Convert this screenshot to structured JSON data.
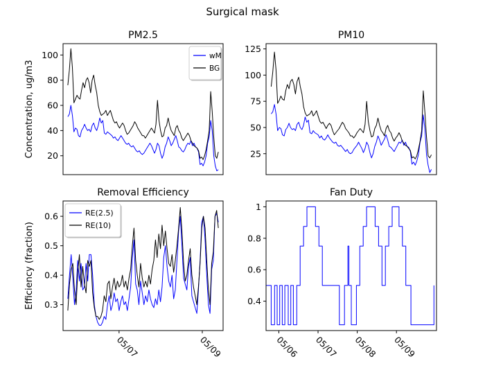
{
  "figure": {
    "suptitle": "Surgical mask"
  },
  "colors": {
    "wm": "#0000ff",
    "bg": "#000000",
    "re25": "#0000ff",
    "re10": "#000000",
    "fan": "#0000ff"
  },
  "chart_data": [
    {
      "type": "line",
      "title": "PM2.5",
      "xlabel": "",
      "ylabel": "Concentration, ug/m3",
      "xlim": [
        0,
        100
      ],
      "ylim": [
        5,
        109
      ],
      "yticks": [
        20,
        40,
        60,
        80,
        100
      ],
      "x_ticks_labeled": false,
      "legend": {
        "placement": "top-right",
        "entries": [
          "wM",
          "BG"
        ]
      },
      "series": [
        {
          "name": "wM",
          "color_key": "wm",
          "values": [
            51,
            53,
            60,
            52,
            39,
            42,
            41,
            36,
            35,
            40,
            42,
            45,
            42,
            40,
            41,
            39,
            44,
            46,
            42,
            40,
            44,
            50,
            46,
            48,
            38,
            37,
            39,
            38,
            37,
            36,
            34,
            35,
            33,
            32,
            34,
            36,
            34,
            32,
            30,
            29,
            30,
            28,
            27,
            28,
            26,
            24,
            23,
            24,
            22,
            21,
            22,
            24,
            26,
            28,
            30,
            28,
            25,
            22,
            25,
            30,
            28,
            22,
            18,
            21,
            27,
            30,
            35,
            32,
            28,
            30,
            33,
            36,
            32,
            27,
            26,
            24,
            23,
            25,
            28,
            30,
            29,
            32,
            28,
            30,
            27,
            26,
            23,
            13,
            14,
            12,
            15,
            20,
            30,
            35,
            48,
            40,
            20,
            12,
            8,
            9
          ]
        },
        {
          "name": "BG",
          "color_key": "bg",
          "values": [
            76,
            88,
            105,
            90,
            62,
            65,
            68,
            66,
            65,
            72,
            78,
            74,
            80,
            82,
            78,
            70,
            80,
            84,
            76,
            70,
            60,
            55,
            52,
            53,
            54,
            56,
            52,
            54,
            56,
            52,
            48,
            46,
            47,
            44,
            42,
            44,
            46,
            44,
            40,
            37,
            38,
            40,
            42,
            44,
            47,
            45,
            42,
            40,
            38,
            36,
            36,
            34,
            36,
            38,
            40,
            42,
            40,
            38,
            45,
            64,
            48,
            40,
            35,
            36,
            42,
            44,
            50,
            44,
            40,
            38,
            36,
            42,
            44,
            40,
            38,
            34,
            32,
            34,
            36,
            38,
            36,
            32,
            30,
            28,
            27,
            26,
            24,
            18,
            19,
            17,
            20,
            25,
            32,
            40,
            71,
            55,
            35,
            20,
            18,
            23
          ]
        }
      ]
    },
    {
      "type": "line",
      "title": "PM10",
      "xlabel": "",
      "ylabel": "",
      "xlim": [
        0,
        100
      ],
      "ylim": [
        5,
        130
      ],
      "yticks": [
        25,
        50,
        75,
        100,
        125
      ],
      "x_ticks_labeled": false,
      "legend": null,
      "series": [
        {
          "name": "",
          "color_key": "wm",
          "values": [
            63,
            65,
            72,
            63,
            47,
            50,
            49,
            43,
            42,
            48,
            50,
            54,
            50,
            48,
            49,
            47,
            53,
            55,
            50,
            48,
            52,
            60,
            55,
            57,
            45,
            44,
            47,
            45,
            44,
            43,
            40,
            42,
            39,
            38,
            40,
            43,
            40,
            38,
            36,
            35,
            36,
            33,
            32,
            33,
            31,
            29,
            27,
            29,
            26,
            25,
            26,
            29,
            31,
            33,
            36,
            33,
            30,
            26,
            30,
            36,
            33,
            26,
            21,
            25,
            32,
            36,
            42,
            38,
            33,
            36,
            39,
            43,
            38,
            32,
            31,
            29,
            27,
            30,
            33,
            36,
            35,
            38,
            33,
            36,
            32,
            31,
            27,
            15,
            17,
            14,
            18,
            24,
            36,
            42,
            62,
            48,
            24,
            14,
            7,
            10
          ]
        },
        {
          "name": "",
          "color_key": "bg",
          "values": [
            89,
            103,
            122,
            105,
            73,
            76,
            80,
            77,
            76,
            85,
            91,
            87,
            94,
            96,
            91,
            82,
            94,
            98,
            89,
            82,
            70,
            64,
            61,
            62,
            63,
            66,
            61,
            63,
            66,
            61,
            56,
            54,
            55,
            52,
            49,
            52,
            54,
            52,
            47,
            43,
            45,
            47,
            49,
            52,
            55,
            53,
            49,
            47,
            45,
            42,
            42,
            40,
            42,
            45,
            47,
            49,
            47,
            45,
            53,
            75,
            56,
            47,
            41,
            42,
            49,
            52,
            59,
            52,
            47,
            45,
            42,
            49,
            52,
            47,
            45,
            40,
            37,
            40,
            42,
            45,
            42,
            37,
            35,
            33,
            32,
            30,
            28,
            21,
            22,
            20,
            23,
            29,
            37,
            47,
            85,
            64,
            41,
            23,
            21,
            24
          ]
        }
      ]
    },
    {
      "type": "line",
      "title": "Removal Efficiency",
      "xlabel": "",
      "ylabel": "Efficiency (fraction)",
      "xlim": [
        0,
        100
      ],
      "ylim": [
        0.212,
        0.652
      ],
      "yticks": [
        0.3,
        0.4,
        0.5,
        0.6
      ],
      "xticks": [
        {
          "x": 35,
          "label": "05/07"
        },
        {
          "x": 87,
          "label": "05/09"
        }
      ],
      "legend": {
        "placement": "top-left",
        "entries": [
          "RE(2.5)",
          "RE(10)"
        ]
      },
      "series": [
        {
          "name": "RE(2.5)",
          "color_key": "re25",
          "values": [
            0.32,
            0.4,
            0.47,
            0.39,
            0.3,
            0.35,
            0.45,
            0.38,
            0.44,
            0.35,
            0.36,
            0.44,
            0.38,
            0.47,
            0.47,
            0.4,
            0.3,
            0.26,
            0.24,
            0.23,
            0.23,
            0.24,
            0.26,
            0.25,
            0.3,
            0.33,
            0.28,
            0.3,
            0.34,
            0.31,
            0.32,
            0.28,
            0.31,
            0.33,
            0.3,
            0.31,
            0.28,
            0.32,
            0.36,
            0.46,
            0.52,
            0.37,
            0.35,
            0.3,
            0.38,
            0.34,
            0.3,
            0.33,
            0.31,
            0.35,
            0.32,
            0.3,
            0.29,
            0.32,
            0.3,
            0.35,
            0.31,
            0.36,
            0.46,
            0.5,
            0.43,
            0.38,
            0.36,
            0.4,
            0.32,
            0.35,
            0.45,
            0.55,
            0.6,
            0.5,
            0.39,
            0.37,
            0.35,
            0.43,
            0.46,
            0.33,
            0.31,
            0.29,
            0.27,
            0.35,
            0.45,
            0.58,
            0.6,
            0.52,
            0.4,
            0.3,
            0.27,
            0.42,
            0.45,
            0.6,
            0.61,
            0.58
          ]
        },
        {
          "name": "RE(10)",
          "color_key": "re10",
          "values": [
            0.28,
            0.37,
            0.42,
            0.44,
            0.35,
            0.3,
            0.41,
            0.47,
            0.36,
            0.43,
            0.37,
            0.34,
            0.45,
            0.43,
            0.45,
            0.34,
            0.29,
            0.26,
            0.26,
            0.25,
            0.26,
            0.28,
            0.33,
            0.31,
            0.37,
            0.38,
            0.32,
            0.36,
            0.39,
            0.35,
            0.38,
            0.36,
            0.37,
            0.4,
            0.36,
            0.38,
            0.35,
            0.39,
            0.42,
            0.5,
            0.56,
            0.45,
            0.4,
            0.36,
            0.44,
            0.39,
            0.36,
            0.38,
            0.36,
            0.4,
            0.37,
            0.42,
            0.45,
            0.52,
            0.46,
            0.54,
            0.49,
            0.57,
            0.5,
            0.55,
            0.49,
            0.44,
            0.43,
            0.47,
            0.41,
            0.45,
            0.5,
            0.56,
            0.63,
            0.55,
            0.44,
            0.38,
            0.4,
            0.45,
            0.49,
            0.4,
            0.36,
            0.33,
            0.3,
            0.36,
            0.44,
            0.56,
            0.6,
            0.56,
            0.45,
            0.35,
            0.3,
            0.44,
            0.48,
            0.6,
            0.62,
            0.56
          ]
        }
      ]
    },
    {
      "type": "line",
      "title": "Fan Duty",
      "xlabel": "",
      "ylabel": "",
      "xlim": [
        0,
        100
      ],
      "ylim": [
        0.213,
        1.037
      ],
      "yticks": [
        0.4,
        0.6,
        0.8,
        1.0
      ],
      "xticks": [
        {
          "x": 7.5,
          "label": "05/06"
        },
        {
          "x": 30.5,
          "label": "05/07"
        },
        {
          "x": 53.5,
          "label": "05/08"
        },
        {
          "x": 76.5,
          "label": "05/09"
        }
      ],
      "legend": null,
      "step": true,
      "series": [
        {
          "name": "",
          "color_key": "fan",
          "points": [
            [
              0,
              0.5
            ],
            [
              3,
              0.5
            ],
            [
              3,
              0.25
            ],
            [
              5,
              0.25
            ],
            [
              5,
              0.5
            ],
            [
              6.5,
              0.5
            ],
            [
              6.5,
              0.25
            ],
            [
              8,
              0.25
            ],
            [
              8,
              0.5
            ],
            [
              9.5,
              0.5
            ],
            [
              9.5,
              0.25
            ],
            [
              11,
              0.25
            ],
            [
              11,
              0.5
            ],
            [
              13,
              0.5
            ],
            [
              13,
              0.25
            ],
            [
              14.5,
              0.25
            ],
            [
              14.5,
              0.5
            ],
            [
              16,
              0.5
            ],
            [
              16,
              0.25
            ],
            [
              18,
              0.25
            ],
            [
              18,
              0.5
            ],
            [
              20,
              0.5
            ],
            [
              20,
              0.75
            ],
            [
              22,
              0.75
            ],
            [
              22,
              0.875
            ],
            [
              24,
              0.875
            ],
            [
              24,
              1.0
            ],
            [
              29,
              1.0
            ],
            [
              29,
              0.875
            ],
            [
              31,
              0.875
            ],
            [
              31,
              0.75
            ],
            [
              33,
              0.75
            ],
            [
              33,
              0.5
            ],
            [
              43,
              0.5
            ],
            [
              43,
              0.25
            ],
            [
              46,
              0.25
            ],
            [
              46,
              0.5
            ],
            [
              48,
              0.5
            ],
            [
              48,
              0.75
            ],
            [
              48.6,
              0.75
            ],
            [
              48.6,
              0.5
            ],
            [
              50,
              0.5
            ],
            [
              50,
              0.25
            ],
            [
              53,
              0.25
            ],
            [
              53,
              0.5
            ],
            [
              55,
              0.5
            ],
            [
              55,
              0.75
            ],
            [
              57,
              0.75
            ],
            [
              57,
              0.875
            ],
            [
              59,
              0.875
            ],
            [
              59,
              1.0
            ],
            [
              64,
              1.0
            ],
            [
              64,
              0.875
            ],
            [
              66,
              0.875
            ],
            [
              66,
              0.75
            ],
            [
              68,
              0.75
            ],
            [
              68,
              0.5
            ],
            [
              70,
              0.5
            ],
            [
              70,
              0.75
            ],
            [
              72,
              0.75
            ],
            [
              72,
              0.875
            ],
            [
              74,
              0.875
            ],
            [
              74,
              1.0
            ],
            [
              78,
              1.0
            ],
            [
              78,
              0.875
            ],
            [
              80,
              0.875
            ],
            [
              80,
              0.75
            ],
            [
              82,
              0.75
            ],
            [
              82,
              0.5
            ],
            [
              85,
              0.5
            ],
            [
              85,
              0.25
            ],
            [
              98.5,
              0.25
            ],
            [
              98.5,
              0.5
            ]
          ]
        }
      ]
    }
  ]
}
